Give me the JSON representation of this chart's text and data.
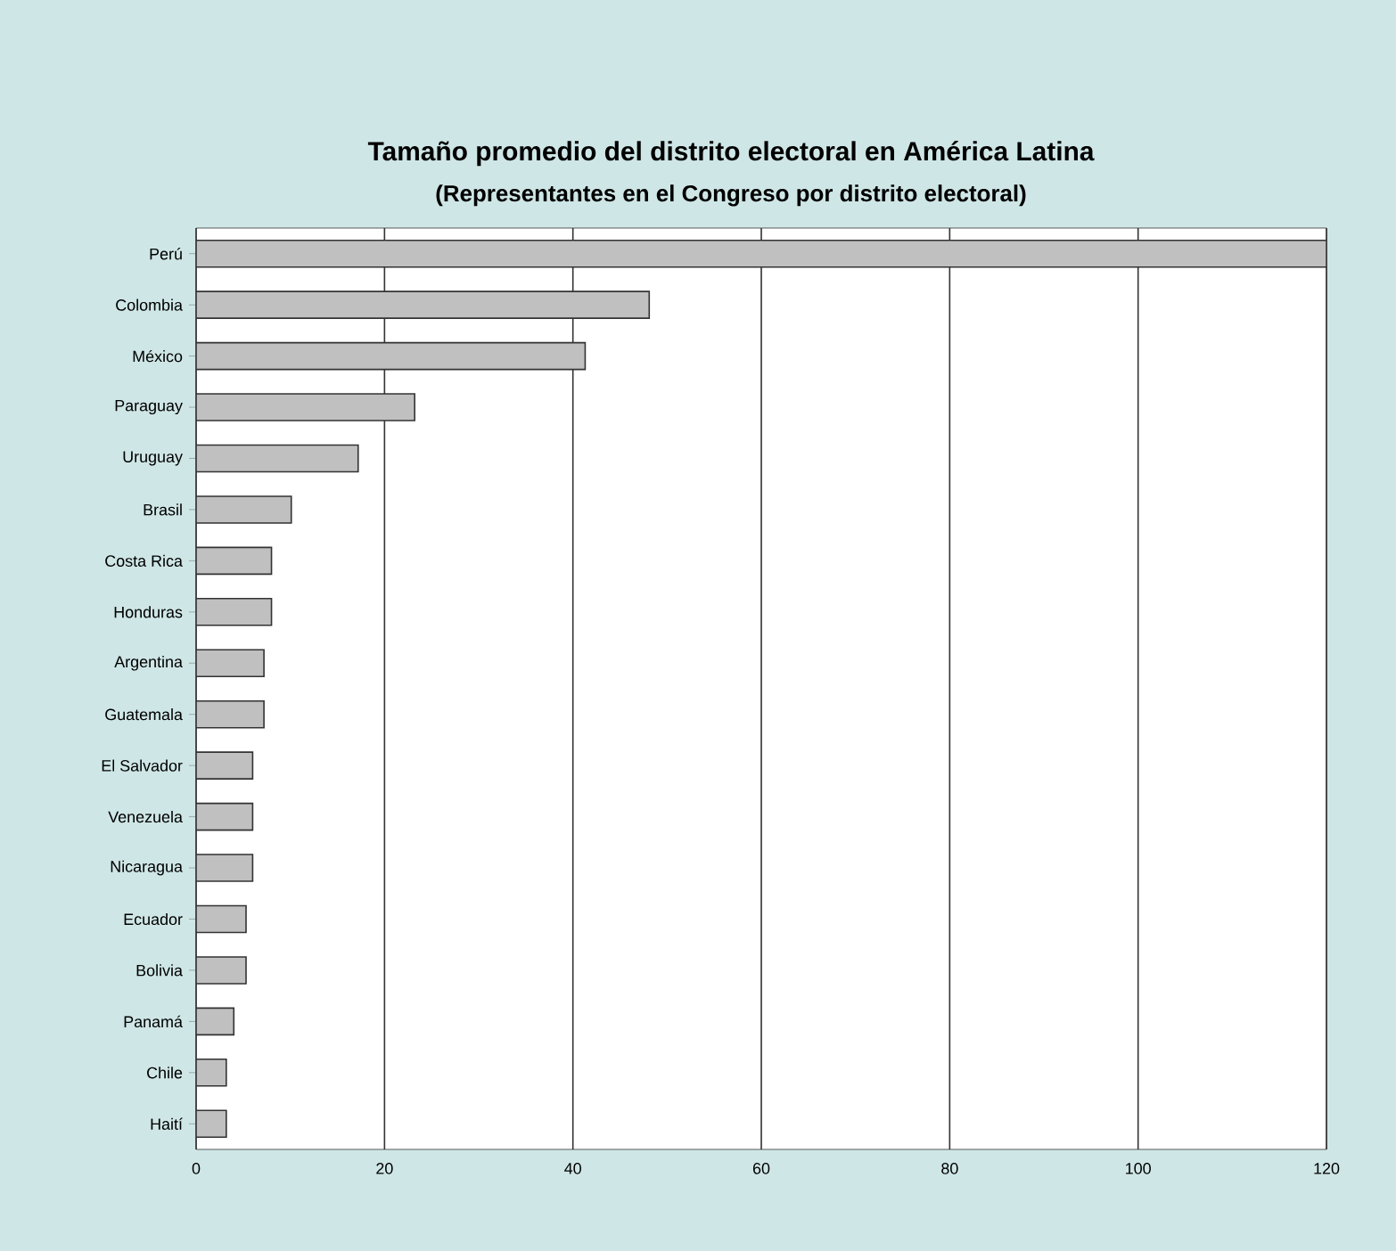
{
  "chart_data": {
    "type": "bar",
    "orientation": "horizontal",
    "title": "Tamaño promedio del distrito electoral en América Latina",
    "subtitle": "(Representantes en el Congreso por distrito electoral)",
    "categories": [
      "Perú",
      "Colombia",
      "México",
      "Paraguay",
      "Uruguay",
      "Brasil",
      "Costa Rica",
      "Honduras",
      "Argentina",
      "Guatemala",
      "El Salvador",
      "Venezuela",
      "Nicaragua",
      "Ecuador",
      "Bolivia",
      "Panamá",
      "Chile",
      "Haití"
    ],
    "values": [
      120,
      48.1,
      41.3,
      23.2,
      17.2,
      10.1,
      8.0,
      8.0,
      7.2,
      7.2,
      6.0,
      6.0,
      6.0,
      5.3,
      5.3,
      4.0,
      3.2,
      3.2
    ],
    "color": "#c0c0c0",
    "xlim": [
      0,
      120
    ],
    "xticks": [
      0,
      20,
      40,
      60,
      80,
      100,
      120
    ],
    "grid": "x"
  }
}
